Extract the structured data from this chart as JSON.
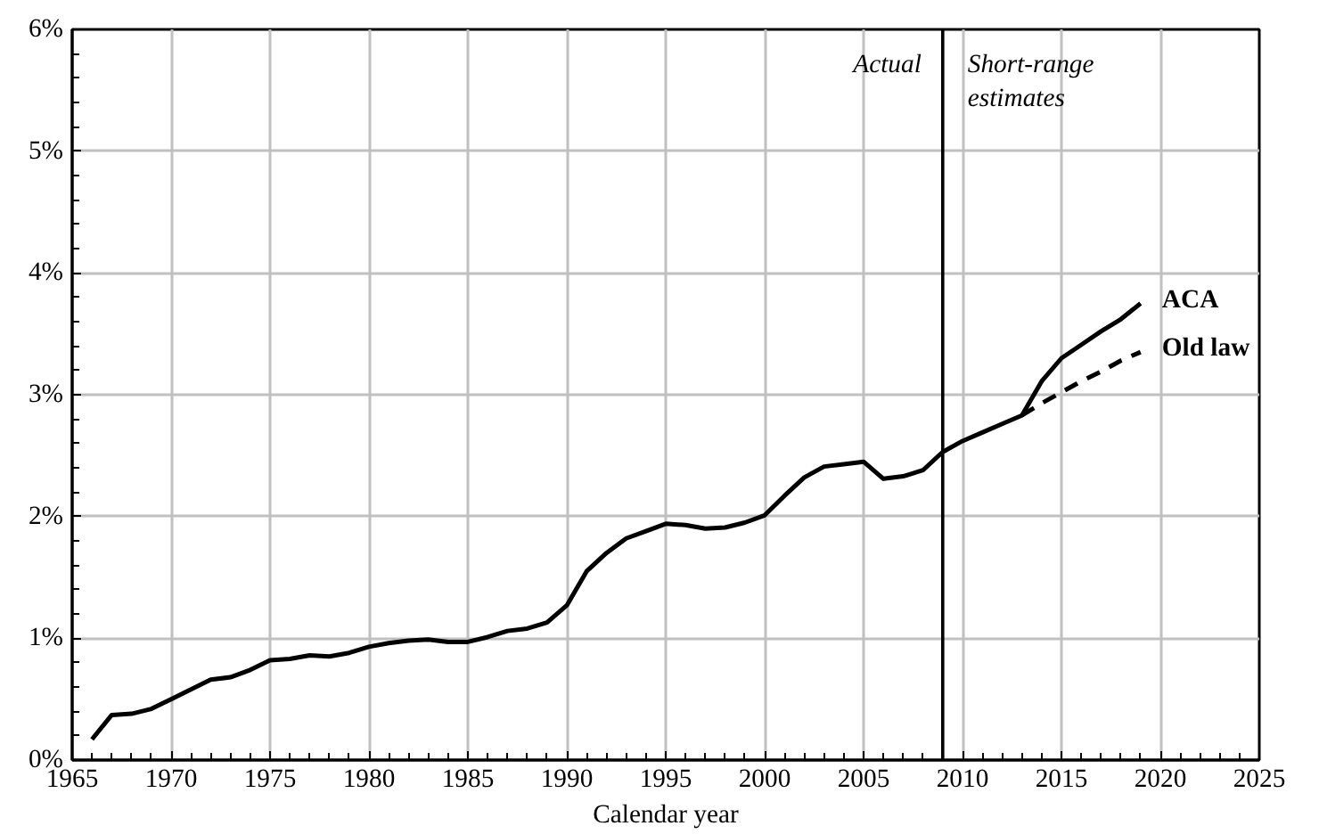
{
  "chart_data": {
    "type": "line",
    "xlabel": "Calendar year",
    "xlim": [
      1965,
      2025
    ],
    "xticks": [
      1965,
      1970,
      1975,
      1980,
      1985,
      1990,
      1995,
      2000,
      2005,
      2010,
      2015,
      2020,
      2025
    ],
    "ylim": [
      0,
      6
    ],
    "yticks": [
      {
        "value": 0,
        "label": "0%"
      },
      {
        "value": 1,
        "label": "1%"
      },
      {
        "value": 2,
        "label": "2%"
      },
      {
        "value": 3,
        "label": "3%"
      },
      {
        "value": 4,
        "label": "4%"
      },
      {
        "value": 5,
        "label": "5%"
      },
      {
        "value": 6,
        "label": "6%"
      }
    ],
    "grid": true,
    "marker": "none",
    "series": [
      {
        "name": "ACA",
        "color": "#000000",
        "line_style": "solid",
        "x": [
          1966,
          1967,
          1968,
          1969,
          1970,
          1971,
          1972,
          1973,
          1974,
          1975,
          1976,
          1977,
          1978,
          1979,
          1980,
          1981,
          1982,
          1983,
          1984,
          1985,
          1986,
          1987,
          1988,
          1989,
          1990,
          1991,
          1992,
          1993,
          1994,
          1995,
          1996,
          1997,
          1998,
          1999,
          2000,
          2001,
          2002,
          2003,
          2004,
          2005,
          2006,
          2007,
          2008,
          2009,
          2010,
          2011,
          2012,
          2013,
          2014,
          2015,
          2016,
          2017,
          2018,
          2019
        ],
        "values": [
          0.17,
          0.37,
          0.38,
          0.42,
          0.5,
          0.58,
          0.66,
          0.68,
          0.74,
          0.82,
          0.83,
          0.86,
          0.85,
          0.88,
          0.93,
          0.96,
          0.98,
          0.99,
          0.97,
          0.97,
          1.01,
          1.06,
          1.08,
          1.13,
          1.27,
          1.55,
          1.7,
          1.82,
          1.88,
          1.94,
          1.93,
          1.9,
          1.91,
          1.95,
          2.01,
          2.17,
          2.32,
          2.41,
          2.43,
          2.45,
          2.31,
          2.33,
          2.38,
          2.53,
          2.62,
          2.69,
          2.76,
          2.83,
          3.11,
          3.3,
          3.41,
          3.52,
          3.62,
          3.75
        ]
      },
      {
        "name": "Old law",
        "color": "#000000",
        "line_style": "dashed",
        "x": [
          2013,
          2014,
          2015,
          2016,
          2017,
          2018,
          2019
        ],
        "values": [
          2.83,
          2.93,
          3.02,
          3.11,
          3.19,
          3.28,
          3.35
        ]
      }
    ],
    "ref_lines": [
      {
        "axis": "x",
        "value": 2009,
        "color": "#000000",
        "line_style": "solid"
      }
    ],
    "annotations": [
      "Actual",
      "Short-range\nestimates"
    ]
  }
}
